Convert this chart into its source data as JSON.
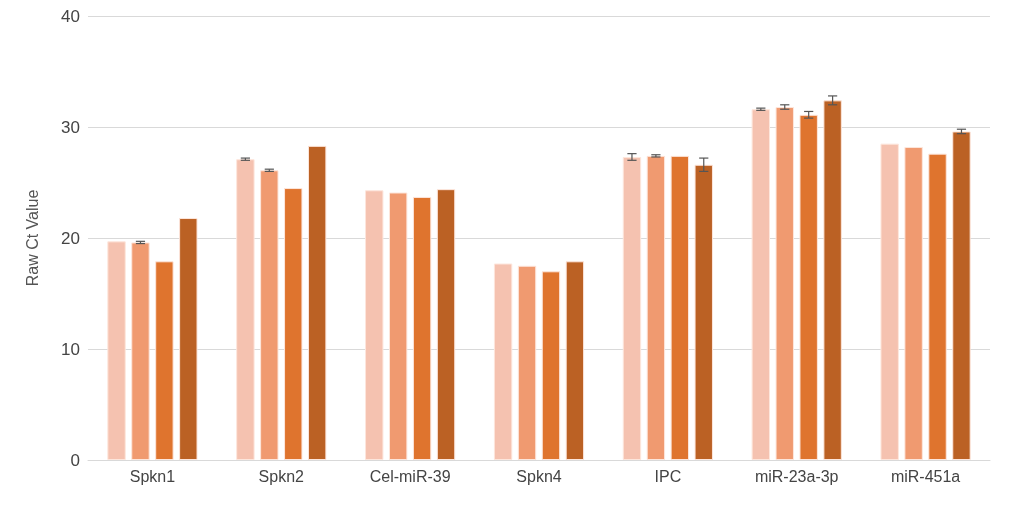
{
  "chart_data": {
    "type": "bar",
    "ylabel": "Raw Ct Value",
    "categories": [
      "Spkn1",
      "Spkn2",
      "Cel-miR-39",
      "Spkn4",
      "IPC",
      "miR-23a-3p",
      "miR-451a"
    ],
    "series": [
      {
        "color": "#f5c2b0",
        "values": [
          19.7,
          27.1,
          24.3,
          17.7,
          27.3,
          31.6,
          28.5
        ],
        "errors": [
          null,
          0.1,
          null,
          null,
          0.3,
          0.1,
          null
        ]
      },
      {
        "color": "#f09a70",
        "values": [
          19.6,
          26.1,
          24.1,
          17.5,
          27.4,
          31.8,
          28.2
        ],
        "errors": [
          0.1,
          0.1,
          null,
          null,
          0.1,
          0.2,
          null
        ]
      },
      {
        "color": "#df742e",
        "values": [
          17.9,
          24.5,
          23.7,
          17.0,
          27.4,
          31.1,
          27.6
        ],
        "errors": [
          null,
          null,
          null,
          null,
          null,
          0.3,
          null
        ]
      },
      {
        "color": "#bb6124",
        "values": [
          21.8,
          28.3,
          24.4,
          17.9,
          26.6,
          32.4,
          29.6
        ],
        "errors": [
          null,
          null,
          null,
          null,
          0.6,
          0.4,
          0.2
        ]
      }
    ],
    "ylim": [
      0,
      40
    ],
    "yticks": [
      0,
      10,
      20,
      30,
      40
    ],
    "grid": "y",
    "legend": false
  }
}
